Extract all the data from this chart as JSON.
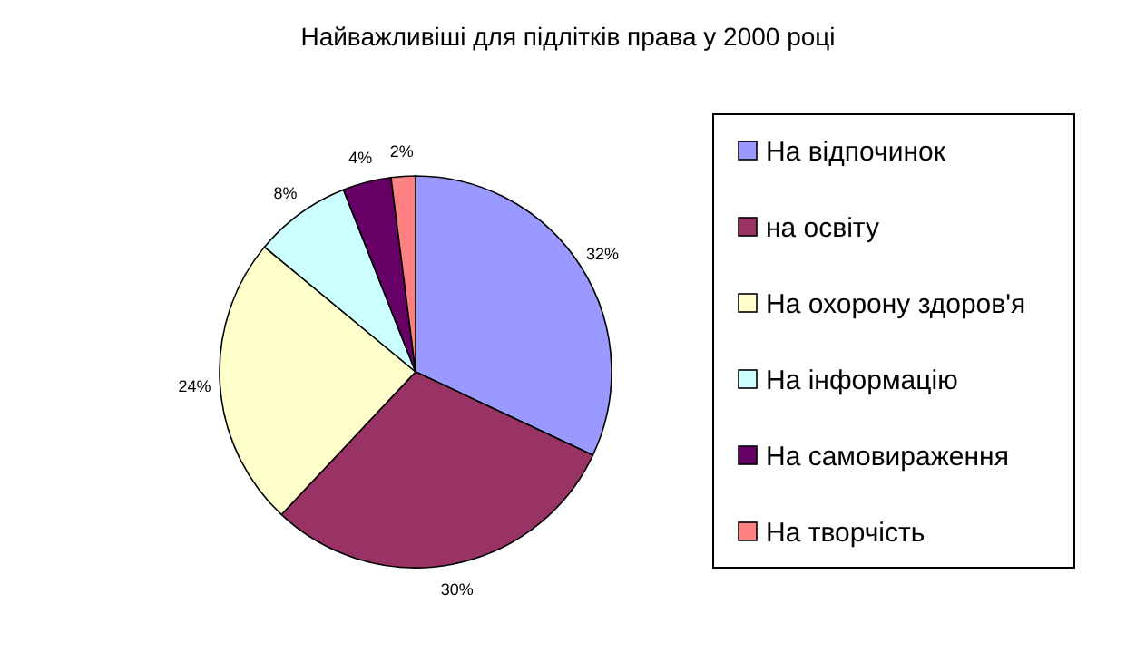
{
  "chart_data": {
    "type": "pie",
    "title": "Найважливіші для підлітків права у 2000 році",
    "categories": [
      "На відпочинок",
      "на освіту",
      "На охорону здоров'я",
      "На інформацію",
      "На самовираження",
      "На творчість"
    ],
    "values": [
      32,
      30,
      24,
      8,
      4,
      2
    ],
    "value_labels": [
      "32%",
      "30%",
      "24%",
      "8%",
      "4%",
      "2%"
    ],
    "colors": [
      "#9999ff",
      "#993366",
      "#ffffcc",
      "#ccffff",
      "#660066",
      "#ff8080"
    ],
    "legend": "right"
  }
}
